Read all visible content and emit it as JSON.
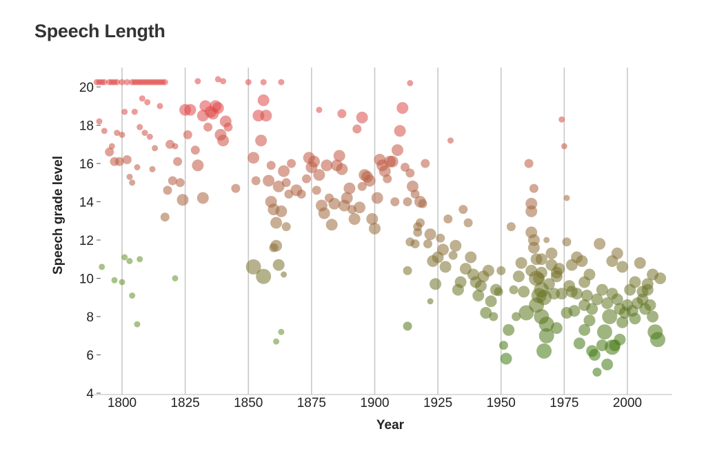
{
  "chart_data": {
    "type": "scatter",
    "title": "Speech Length",
    "xlabel": "Year",
    "ylabel": "Speech grade level",
    "xlim": [
      1790,
      2016
    ],
    "ylim": [
      4,
      21
    ],
    "x_ticks": [
      1800,
      1825,
      1850,
      1875,
      1900,
      1925,
      1950,
      1975,
      2000
    ],
    "y_ticks": [
      4,
      6,
      8,
      10,
      12,
      14,
      16,
      18,
      20
    ],
    "grid": {
      "x": true,
      "y": false
    },
    "encoding": {
      "color": "gradient by grade level",
      "color_high": "#e04848",
      "color_low": "#3e7a10",
      "size": "speech length"
    },
    "points": [
      [
        1790,
        20.25,
        2
      ],
      [
        1791,
        20.25,
        2
      ],
      [
        1792,
        20.25,
        2
      ],
      [
        1793,
        20.25,
        2
      ],
      [
        1795,
        20.25,
        2
      ],
      [
        1796,
        20.25,
        2
      ],
      [
        1797,
        20.25,
        2
      ],
      [
        1798,
        20.25,
        2
      ],
      [
        1800,
        20.25,
        2
      ],
      [
        1802,
        20.25,
        2
      ],
      [
        1804,
        20.25,
        2
      ],
      [
        1805,
        20.25,
        2
      ],
      [
        1806,
        20.25,
        2
      ],
      [
        1807,
        20.25,
        2
      ],
      [
        1808,
        20.25,
        2
      ],
      [
        1809,
        20.25,
        2
      ],
      [
        1810,
        20.25,
        2
      ],
      [
        1811,
        20.25,
        2
      ],
      [
        1812,
        20.25,
        2
      ],
      [
        1813,
        20.25,
        2
      ],
      [
        1814,
        20.25,
        2
      ],
      [
        1815,
        20.25,
        2
      ],
      [
        1816,
        20.25,
        2
      ],
      [
        1817,
        20.25,
        2
      ],
      [
        1830,
        20.3,
        2
      ],
      [
        1838,
        20.4,
        2
      ],
      [
        1840,
        20.3,
        2
      ],
      [
        1850,
        20.25,
        2
      ],
      [
        1856,
        20.25,
        2
      ],
      [
        1863,
        20.25,
        2
      ],
      [
        1791,
        18.2,
        2
      ],
      [
        1793,
        17.7,
        2
      ],
      [
        1795,
        16.6,
        3
      ],
      [
        1796,
        16.9,
        2
      ],
      [
        1797,
        16.1,
        3
      ],
      [
        1798,
        17.6,
        2
      ],
      [
        1799,
        16.1,
        3
      ],
      [
        1800,
        17.5,
        2
      ],
      [
        1801,
        18.7,
        2
      ],
      [
        1802,
        16.2,
        3
      ],
      [
        1803,
        15.3,
        2
      ],
      [
        1804,
        15.0,
        2
      ],
      [
        1805,
        18.7,
        2
      ],
      [
        1806,
        15.8,
        2
      ],
      [
        1807,
        17.9,
        2
      ],
      [
        1808,
        19.4,
        2
      ],
      [
        1809,
        17.6,
        2
      ],
      [
        1810,
        19.2,
        2
      ],
      [
        1811,
        17.4,
        2
      ],
      [
        1812,
        15.7,
        2
      ],
      [
        1813,
        16.8,
        2
      ],
      [
        1815,
        19.0,
        2
      ],
      [
        1817,
        13.2,
        3
      ],
      [
        1818,
        14.6,
        3
      ],
      [
        1819,
        17.0,
        3
      ],
      [
        1820,
        15.1,
        3
      ],
      [
        1821,
        16.9,
        2
      ],
      [
        1822,
        16.1,
        3
      ],
      [
        1823,
        15.0,
        3
      ],
      [
        1824,
        14.1,
        4
      ],
      [
        1825,
        18.8,
        4
      ],
      [
        1826,
        17.5,
        3
      ],
      [
        1827,
        18.8,
        4
      ],
      [
        1829,
        16.7,
        3
      ],
      [
        1830,
        15.9,
        4
      ],
      [
        1832,
        18.5,
        4
      ],
      [
        1833,
        19.0,
        4
      ],
      [
        1834,
        17.9,
        3
      ],
      [
        1835,
        18.7,
        4
      ],
      [
        1836,
        18.6,
        4
      ],
      [
        1837,
        19.0,
        4
      ],
      [
        1838,
        18.9,
        4
      ],
      [
        1839,
        17.5,
        4
      ],
      [
        1840,
        17.2,
        4
      ],
      [
        1841,
        18.2,
        4
      ],
      [
        1842,
        17.9,
        3
      ],
      [
        1845,
        14.7,
        3
      ],
      [
        1832,
        14.2,
        4
      ],
      [
        1852,
        16.3,
        4
      ],
      [
        1854,
        18.5,
        4
      ],
      [
        1855,
        17.2,
        4
      ],
      [
        1856,
        19.3,
        4
      ],
      [
        1857,
        18.5,
        4
      ],
      [
        1853,
        15.1,
        3
      ],
      [
        1858,
        15.1,
        4
      ],
      [
        1859,
        14.0,
        4
      ],
      [
        1860,
        13.6,
        4
      ],
      [
        1861,
        12.9,
        4
      ],
      [
        1862,
        14.8,
        4
      ],
      [
        1863,
        13.5,
        4
      ],
      [
        1864,
        15.6,
        4
      ],
      [
        1865,
        12.7,
        3
      ],
      [
        1866,
        14.4,
        3
      ],
      [
        1859,
        15.9,
        3
      ],
      [
        1861,
        11.7,
        4
      ],
      [
        1860,
        11.6,
        3
      ],
      [
        1852,
        10.6,
        5
      ],
      [
        1856,
        10.1,
        5
      ],
      [
        1862,
        10.7,
        4
      ],
      [
        1864,
        10.2,
        2
      ],
      [
        1865,
        15.0,
        3
      ],
      [
        1867,
        16.0,
        3
      ],
      [
        1869,
        14.6,
        4
      ],
      [
        1871,
        14.4,
        3
      ],
      [
        1873,
        15.2,
        3
      ],
      [
        1874,
        16.3,
        4
      ],
      [
        1875,
        15.8,
        4
      ],
      [
        1876,
        16.1,
        4
      ],
      [
        1877,
        14.6,
        3
      ],
      [
        1878,
        15.4,
        4
      ],
      [
        1879,
        13.8,
        4
      ],
      [
        1880,
        13.4,
        4
      ],
      [
        1881,
        15.9,
        4
      ],
      [
        1882,
        14.2,
        3
      ],
      [
        1883,
        12.8,
        4
      ],
      [
        1884,
        13.9,
        4
      ],
      [
        1885,
        15.9,
        4
      ],
      [
        1886,
        16.4,
        4
      ],
      [
        1887,
        15.7,
        4
      ],
      [
        1888,
        13.8,
        4
      ],
      [
        1889,
        14.2,
        4
      ],
      [
        1890,
        14.7,
        4
      ],
      [
        1891,
        13.6,
        3
      ],
      [
        1892,
        13.1,
        4
      ],
      [
        1893,
        17.8,
        3
      ],
      [
        1894,
        13.7,
        4
      ],
      [
        1895,
        14.8,
        3
      ],
      [
        1896,
        15.4,
        4
      ],
      [
        1897,
        15.3,
        4
      ],
      [
        1898,
        15.1,
        4
      ],
      [
        1899,
        13.1,
        4
      ],
      [
        1900,
        12.6,
        4
      ],
      [
        1901,
        14.2,
        4
      ],
      [
        1902,
        16.2,
        4
      ],
      [
        1903,
        15.9,
        4
      ],
      [
        1904,
        15.6,
        4
      ],
      [
        1905,
        15.2,
        3
      ],
      [
        1906,
        16.1,
        4
      ],
      [
        1907,
        16.1,
        4
      ],
      [
        1908,
        14.0,
        3
      ],
      [
        1909,
        16.7,
        4
      ],
      [
        1910,
        17.7,
        4
      ],
      [
        1911,
        18.9,
        4
      ],
      [
        1912,
        15.8,
        3
      ],
      [
        1913,
        14.0,
        3
      ],
      [
        1914,
        15.5,
        3
      ],
      [
        1915,
        14.8,
        4
      ],
      [
        1916,
        14.4,
        3
      ],
      [
        1917,
        12.7,
        3
      ],
      [
        1918,
        14.0,
        4
      ],
      [
        1919,
        13.9,
        3
      ],
      [
        1878,
        18.8,
        2
      ],
      [
        1887,
        18.6,
        3
      ],
      [
        1895,
        18.4,
        4
      ],
      [
        1914,
        20.2,
        2
      ],
      [
        1913,
        10.4,
        3
      ],
      [
        1914,
        11.9,
        3
      ],
      [
        1916,
        11.8,
        3
      ],
      [
        1917,
        12.4,
        3
      ],
      [
        1918,
        12.9,
        3
      ],
      [
        1920,
        16.0,
        3
      ],
      [
        1921,
        11.8,
        3
      ],
      [
        1922,
        12.3,
        4
      ],
      [
        1923,
        10.9,
        4
      ],
      [
        1924,
        9.7,
        4
      ],
      [
        1925,
        11.1,
        4
      ],
      [
        1926,
        12.1,
        3
      ],
      [
        1927,
        11.5,
        4
      ],
      [
        1928,
        10.6,
        4
      ],
      [
        1929,
        13.1,
        3
      ],
      [
        1930,
        17.2,
        2
      ],
      [
        1913,
        7.5,
        3
      ],
      [
        1922,
        8.8,
        2
      ],
      [
        1931,
        11.2,
        3
      ],
      [
        1932,
        11.7,
        4
      ],
      [
        1933,
        9.4,
        4
      ],
      [
        1934,
        9.8,
        4
      ],
      [
        1935,
        13.6,
        3
      ],
      [
        1936,
        10.5,
        4
      ],
      [
        1937,
        12.9,
        3
      ],
      [
        1938,
        11.1,
        4
      ],
      [
        1939,
        10.2,
        4
      ],
      [
        1940,
        9.8,
        4
      ],
      [
        1941,
        9.1,
        4
      ],
      [
        1942,
        9.6,
        4
      ],
      [
        1943,
        10.1,
        4
      ],
      [
        1944,
        8.2,
        4
      ],
      [
        1945,
        10.4,
        4
      ],
      [
        1946,
        8.8,
        4
      ],
      [
        1947,
        8.0,
        3
      ],
      [
        1948,
        9.4,
        4
      ],
      [
        1949,
        9.3,
        3
      ],
      [
        1950,
        10.4,
        3
      ],
      [
        1951,
        6.5,
        3
      ],
      [
        1952,
        5.8,
        4
      ],
      [
        1953,
        7.3,
        4
      ],
      [
        1954,
        12.7,
        3
      ],
      [
        1955,
        9.4,
        3
      ],
      [
        1956,
        8.0,
        3
      ],
      [
        1957,
        10.1,
        4
      ],
      [
        1958,
        10.8,
        4
      ],
      [
        1959,
        9.3,
        4
      ],
      [
        1960,
        8.2,
        5
      ],
      [
        1961,
        16.0,
        3
      ],
      [
        1962,
        13.5,
        4
      ],
      [
        1962,
        12.4,
        4
      ],
      [
        1963,
        14.7,
        3
      ],
      [
        1963,
        11.6,
        4
      ],
      [
        1964,
        10.0,
        5
      ],
      [
        1965,
        9.1,
        5
      ],
      [
        1966,
        8.0,
        5
      ],
      [
        1967,
        6.2,
        5
      ],
      [
        1968,
        7.0,
        5
      ],
      [
        1969,
        9.7,
        4
      ],
      [
        1970,
        10.7,
        4
      ],
      [
        1971,
        9.2,
        4
      ],
      [
        1972,
        7.4,
        4
      ],
      [
        1973,
        10.5,
        4
      ],
      [
        1974,
        18.3,
        2
      ],
      [
        1975,
        16.9,
        2
      ],
      [
        1976,
        14.2,
        2
      ],
      [
        1977,
        9.6,
        4
      ],
      [
        1978,
        10.7,
        4
      ],
      [
        1979,
        8.3,
        4
      ],
      [
        1980,
        9.2,
        4
      ],
      [
        1981,
        6.6,
        4
      ],
      [
        1982,
        10.9,
        4
      ],
      [
        1983,
        8.6,
        4
      ],
      [
        1984,
        9.1,
        4
      ],
      [
        1985,
        7.8,
        4
      ],
      [
        1986,
        8.4,
        4
      ],
      [
        1987,
        6.0,
        4
      ],
      [
        1988,
        8.9,
        4
      ],
      [
        1989,
        11.8,
        4
      ],
      [
        1990,
        6.5,
        4
      ],
      [
        1991,
        7.2,
        5
      ],
      [
        1992,
        5.5,
        4
      ],
      [
        1993,
        8.0,
        5
      ],
      [
        1994,
        9.2,
        4
      ],
      [
        1995,
        6.5,
        4
      ],
      [
        1996,
        8.9,
        4
      ],
      [
        1997,
        8.4,
        4
      ],
      [
        1998,
        7.7,
        4
      ],
      [
        1999,
        8.2,
        4
      ],
      [
        2000,
        8.6,
        4
      ],
      [
        2001,
        9.4,
        4
      ],
      [
        2002,
        8.3,
        4
      ],
      [
        2003,
        9.8,
        4
      ],
      [
        2004,
        8.7,
        4
      ],
      [
        2005,
        10.8,
        4
      ],
      [
        2006,
        9.3,
        4
      ],
      [
        2007,
        8.4,
        4
      ],
      [
        2008,
        9.7,
        4
      ],
      [
        2009,
        8.6,
        4
      ],
      [
        2010,
        8.0,
        4
      ],
      [
        2011,
        7.2,
        5
      ],
      [
        2012,
        6.8,
        5
      ],
      [
        2013,
        10.0,
        4
      ],
      [
        1962,
        13.9,
        4
      ],
      [
        1963,
        12.0,
        4
      ],
      [
        1964,
        11.0,
        4
      ],
      [
        1962,
        10.4,
        4
      ],
      [
        1965,
        10.0,
        4
      ],
      [
        1966,
        9.4,
        5
      ],
      [
        1964,
        8.6,
        5
      ],
      [
        1967,
        9.0,
        5
      ],
      [
        1968,
        7.6,
        5
      ],
      [
        1966,
        11.0,
        4
      ],
      [
        1972,
        10.1,
        4
      ],
      [
        1974,
        9.2,
        4
      ],
      [
        1976,
        8.2,
        4
      ],
      [
        1978,
        9.3,
        4
      ],
      [
        1983,
        9.8,
        4
      ],
      [
        1985,
        10.2,
        4
      ],
      [
        1990,
        9.4,
        4
      ],
      [
        1992,
        8.7,
        4
      ],
      [
        1994,
        10.9,
        4
      ],
      [
        1996,
        11.3,
        4
      ],
      [
        1998,
        10.6,
        4
      ],
      [
        1983,
        7.3,
        4
      ],
      [
        1986,
        6.2,
        4
      ],
      [
        1988,
        5.1,
        3
      ],
      [
        1994,
        6.4,
        5
      ],
      [
        1997,
        6.8,
        4
      ],
      [
        2003,
        7.9,
        4
      ],
      [
        2006,
        8.9,
        4
      ],
      [
        2008,
        9.4,
        4
      ],
      [
        2010,
        10.2,
        4
      ],
      [
        1976,
        11.9,
        3
      ],
      [
        1980,
        11.1,
        4
      ],
      [
        1970,
        11.3,
        4
      ],
      [
        1968,
        12.0,
        2
      ],
      [
        1972,
        10.3,
        4
      ],
      [
        1966,
        10.3,
        4
      ]
    ],
    "low_outliers": [
      [
        1792,
        10.6
      ],
      [
        1797,
        9.9
      ],
      [
        1800,
        9.8
      ],
      [
        1801,
        11.1
      ],
      [
        1803,
        10.9
      ],
      [
        1804,
        9.1
      ],
      [
        1806,
        7.6
      ],
      [
        1807,
        11.0
      ],
      [
        1821,
        10.0
      ],
      [
        1861,
        6.7
      ],
      [
        1863,
        7.2
      ]
    ]
  }
}
